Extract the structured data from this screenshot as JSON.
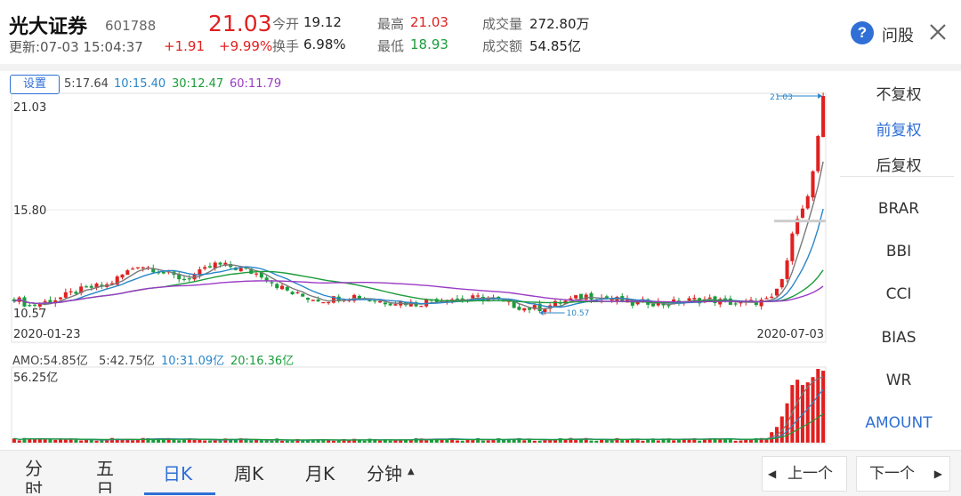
{
  "header": {
    "stock_name": "光大证券",
    "stock_code": "601788",
    "update_time": "更新:07-03 15:04:37",
    "price": "21.03",
    "change": "+1.91",
    "change_pct": "+9.99%",
    "open_label": "今开",
    "open_value": "19.12",
    "turnover_label": "换手",
    "turnover_value": "6.98%",
    "high_label": "最高",
    "high_value": "21.03",
    "low_label": "最低",
    "low_value": "18.93",
    "volume_label": "成交量",
    "volume_value": "272.80万",
    "amount_label": "成交额",
    "amount_value": "54.85亿",
    "help_label": "问股"
  },
  "chart": {
    "settings_label": "设置",
    "ma_values": [
      "5:17.64",
      "10:15.40",
      "30:12.47",
      "60:11.79"
    ],
    "y_top_label": "21.03",
    "y_mid_label": "15.80",
    "y_bottom_label": "10.57",
    "x_start_label": "2020-01-23",
    "x_end_label": "2020-07-03",
    "max_marker": "21.03",
    "min_marker": "10.57",
    "volume_values": [
      "AMO:54.85亿",
      "5:42.75亿",
      "10:31.09亿",
      "20:16.36亿"
    ],
    "volume_max_label": "56.25亿"
  },
  "chart_data": {
    "type": "candlestick",
    "x_start": "2020-01-23",
    "x_end": "2020-07-03",
    "ylim": [
      10.57,
      21.03
    ],
    "y_ticks": [
      21.03,
      15.8,
      10.57
    ],
    "close_path": [
      [
        0,
        11.3
      ],
      [
        3,
        10.9
      ],
      [
        6,
        11.1
      ],
      [
        9,
        11.3
      ],
      [
        12,
        11.6
      ],
      [
        15,
        11.8
      ],
      [
        18,
        11.9
      ],
      [
        21,
        12.4
      ],
      [
        24,
        12.9
      ],
      [
        27,
        12.7
      ],
      [
        30,
        12.4
      ],
      [
        33,
        12.2
      ],
      [
        36,
        12.5
      ],
      [
        39,
        12.9
      ],
      [
        42,
        12.8
      ],
      [
        45,
        12.6
      ],
      [
        48,
        12.4
      ],
      [
        51,
        11.9
      ],
      [
        54,
        11.5
      ],
      [
        57,
        11.3
      ],
      [
        60,
        11.2
      ],
      [
        63,
        11.3
      ],
      [
        66,
        11.4
      ],
      [
        69,
        11.2
      ],
      [
        72,
        11.1
      ],
      [
        75,
        11.1
      ],
      [
        78,
        11.0
      ],
      [
        81,
        11.2
      ],
      [
        84,
        11.3
      ],
      [
        87,
        11.2
      ],
      [
        90,
        11.3
      ],
      [
        93,
        11.2
      ],
      [
        96,
        11.0
      ],
      [
        99,
        10.8
      ],
      [
        102,
        10.8
      ],
      [
        105,
        11.0
      ],
      [
        108,
        11.2
      ],
      [
        111,
        11.4
      ],
      [
        114,
        11.3
      ],
      [
        117,
        11.2
      ],
      [
        120,
        11.0
      ],
      [
        123,
        11.1
      ],
      [
        126,
        11.0
      ],
      [
        129,
        11.1
      ],
      [
        132,
        11.2
      ],
      [
        135,
        11.2
      ],
      [
        138,
        11.1
      ],
      [
        141,
        11.0
      ],
      [
        144,
        11.1
      ],
      [
        147,
        11.2
      ],
      [
        149,
        12.2
      ],
      [
        150,
        13.1
      ],
      [
        151,
        14.4
      ],
      [
        152,
        15.1
      ],
      [
        153,
        15.6
      ],
      [
        154,
        16.2
      ],
      [
        155,
        17.4
      ],
      [
        156,
        19.1
      ],
      [
        157,
        21.03
      ]
    ],
    "ma_lines": [
      {
        "name": "5",
        "color": "#7a7a7a",
        "value": 17.64
      },
      {
        "name": "10",
        "color": "#2a86c8",
        "value": 15.4
      },
      {
        "name": "30",
        "color": "#1a9c3a",
        "value": 12.47
      },
      {
        "name": "60",
        "color": "#9a3bc4",
        "value": 11.79
      }
    ],
    "volume": {
      "max": 56.25,
      "unit": "亿",
      "recent_bars": [
        8,
        12,
        20,
        30,
        44,
        48,
        44,
        46,
        50,
        56.25,
        54.85
      ]
    }
  },
  "right_panel": {
    "adjust_items": [
      "不复权",
      "前复权",
      "后复权"
    ],
    "active_adjust": 1,
    "indicators": [
      "BRAR",
      "BBI",
      "CCI",
      "BIAS",
      "WR",
      "AMOUNT"
    ],
    "active_indicator": 5
  },
  "tabs": {
    "items": [
      "分时",
      "五日",
      "日K",
      "周K",
      "月K",
      "分钟"
    ],
    "active": 2,
    "prev_label": "上一个",
    "next_label": "下一个"
  },
  "colors": {
    "up": "#e02020",
    "down": "#1a9c3a",
    "accent": "#2f6fd6"
  }
}
